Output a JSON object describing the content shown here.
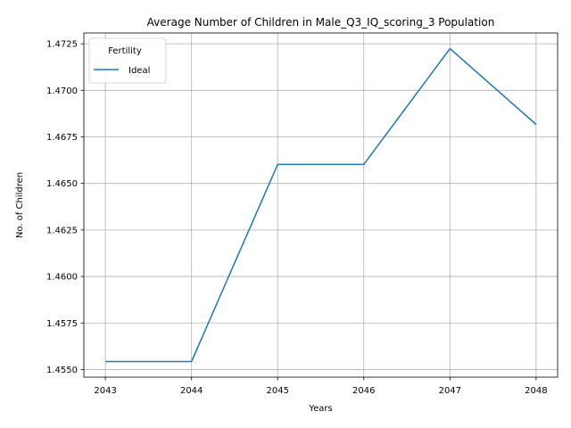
{
  "chart_data": {
    "type": "line",
    "title": "Average Number of Children in Male_Q3_IQ_scoring_3 Population",
    "xlabel": "Years",
    "ylabel": "No. of Children",
    "x": [
      2043,
      2044,
      2045,
      2046,
      2047,
      2048
    ],
    "series": [
      {
        "name": "Ideal",
        "color": "#1f77b4",
        "values": [
          1.45543,
          1.45543,
          1.46602,
          1.46602,
          1.47224,
          1.46817
        ]
      }
    ],
    "xlim": [
      2042.75,
      2048.25
    ],
    "ylim": [
      1.45459,
      1.47308
    ],
    "x_ticks": [
      "2043",
      "2044",
      "2045",
      "2046",
      "2047",
      "2048"
    ],
    "y_ticks": [
      "1.4550",
      "1.4575",
      "1.4600",
      "1.4625",
      "1.4650",
      "1.4675",
      "1.4700",
      "1.4725"
    ],
    "grid": true,
    "legend": {
      "title": "Fertility",
      "placement": "upper-left"
    }
  }
}
